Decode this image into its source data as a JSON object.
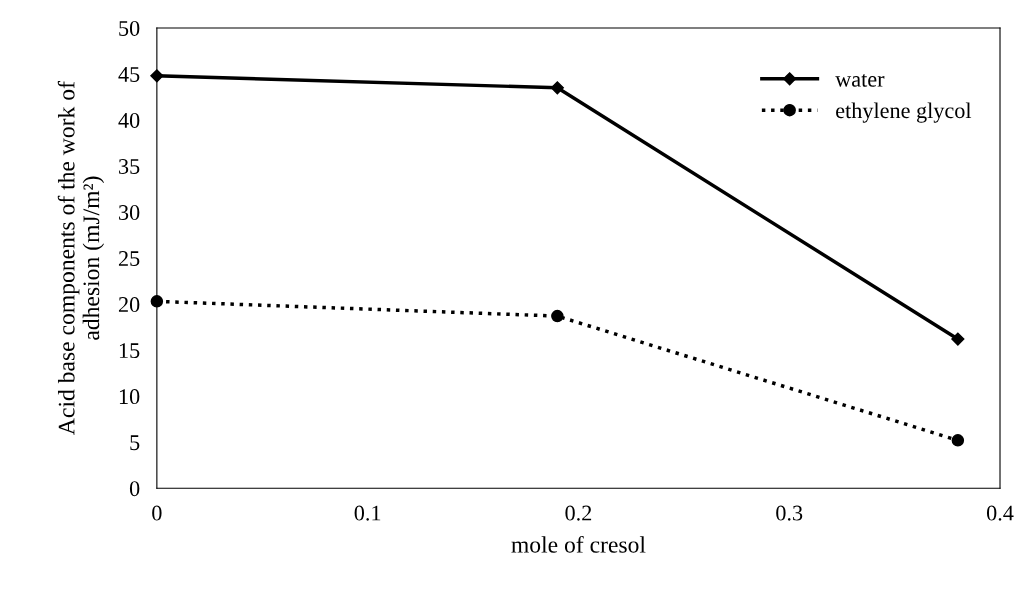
{
  "chart_data": {
    "type": "line",
    "xlabel": "mole of cresol",
    "ylabel": "Acid base components of the work of\nadhesion (mJ/m²)",
    "x": [
      0,
      0.19,
      0.38
    ],
    "series": [
      {
        "name": "water",
        "color": "#000000",
        "values": [
          44.8,
          43.5,
          16.2
        ],
        "marker": "diamond",
        "line_style": "solid"
      },
      {
        "name": "ethylene glycol",
        "color": "#000000",
        "values": [
          20.3,
          18.7,
          5.2
        ],
        "marker": "circle",
        "line_style": "dotted"
      }
    ],
    "xlim": [
      0,
      0.4
    ],
    "xticks": [
      0,
      0.1,
      0.2,
      0.3,
      0.4
    ],
    "ylim": [
      0,
      50
    ],
    "yticks": [
      0,
      5,
      10,
      15,
      20,
      25,
      30,
      35,
      40,
      45,
      50
    ],
    "grid": false,
    "legend": "top right"
  }
}
